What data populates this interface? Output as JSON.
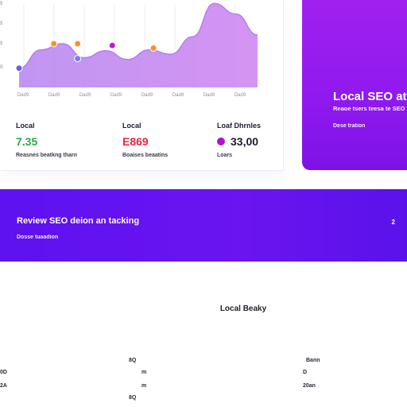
{
  "analytics": {
    "y_ticks": [
      "$",
      "$",
      "$",
      "B"
    ],
    "x_ticks": [
      "Dad9",
      "Dad9",
      "Dad9",
      "Dad9",
      "Dad9",
      "Dad9",
      "Dad9",
      "Dad9"
    ],
    "stats": [
      {
        "label": "Local",
        "value": "7.35",
        "sub": "Reasnes beatkng tharn",
        "color": "#2aa844"
      },
      {
        "label": "Local",
        "value": "E869",
        "sub": "Boaises beaatins",
        "color": "#e8273f"
      },
      {
        "label": "Loaf Dhrnles",
        "value": "33,00",
        "sub": "Loars",
        "color": "#1c1c2c"
      }
    ],
    "colors": {
      "area": "#c08af0",
      "accent": "#a020ef"
    }
  },
  "chart_data": {
    "type": "area",
    "x": [
      0,
      1,
      2,
      3,
      4,
      5,
      6,
      7,
      8,
      9,
      10,
      11
    ],
    "series": [
      {
        "values": [
          22,
          43,
          50,
          34,
          42,
          32,
          43,
          38,
          58,
          96,
          84,
          60
        ]
      }
    ],
    "markers": [
      {
        "x": 0,
        "y": 22,
        "color": "#6a5cf0"
      },
      {
        "x": 1.6,
        "y": 50,
        "color": "#f4932f"
      },
      {
        "x": 2.7,
        "y": 50,
        "color": "#f4932f"
      },
      {
        "x": 2.7,
        "y": 33,
        "color": "#7b7fe8"
      },
      {
        "x": 4.3,
        "y": 48,
        "color": "#c01ad0"
      },
      {
        "x": 6.2,
        "y": 45,
        "color": "#f4932f"
      }
    ],
    "ylim": [
      0,
      100
    ],
    "grid": true
  },
  "promo": {
    "title": "Local SEO at",
    "description": "Reaoe tsers teesa te SEO",
    "link": "Dese tration"
  },
  "banner": {
    "title": "Review SEO deion an tacking",
    "subtitle": "Dosse tuaadion",
    "page": "2"
  },
  "ranking": {
    "title": "Local Beaky",
    "cells": [
      {
        "id": "c1",
        "text": "8Q"
      },
      {
        "id": "c2",
        "text": "Bann"
      },
      {
        "id": "c3",
        "text": "0D"
      },
      {
        "id": "c4",
        "text": "m"
      },
      {
        "id": "c5",
        "text": "D"
      },
      {
        "id": "c6",
        "text": "2A"
      },
      {
        "id": "c7",
        "text": "m"
      },
      {
        "id": "c8",
        "text": "20an"
      },
      {
        "id": "c9",
        "text": "8Q"
      }
    ]
  }
}
